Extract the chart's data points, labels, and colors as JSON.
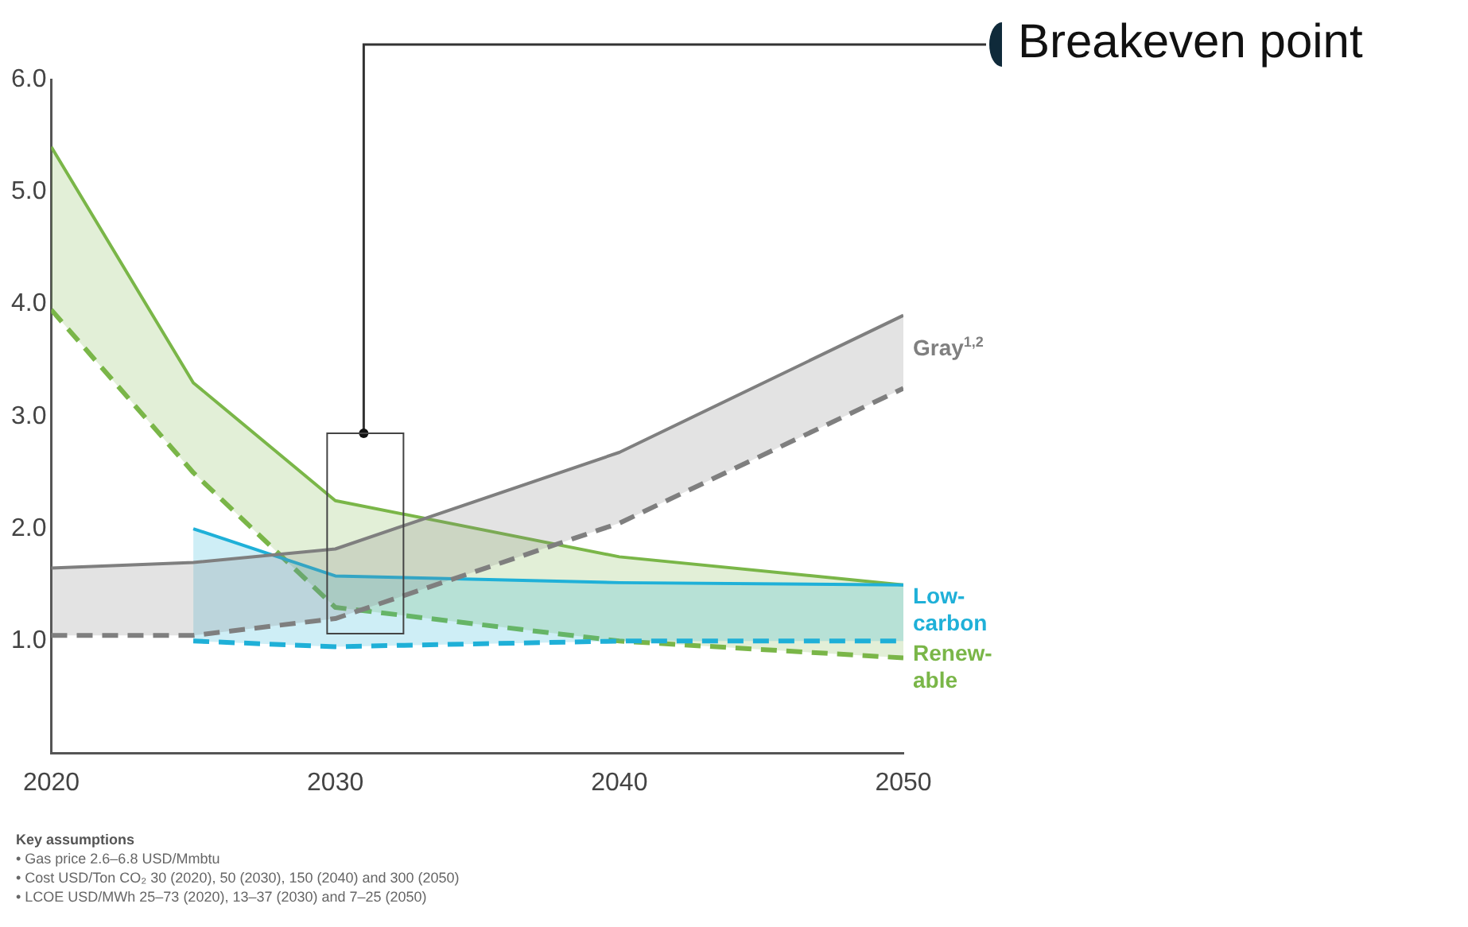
{
  "chart_data": {
    "type": "line",
    "x": [
      2020,
      2025,
      2030,
      2040,
      2050
    ],
    "xlim": [
      2020,
      2050
    ],
    "xticks": [
      2020,
      2030,
      2040,
      2050
    ],
    "ylim": [
      0,
      6
    ],
    "yticks": [
      {
        "value": 1,
        "label": "1.0"
      },
      {
        "value": 2,
        "label": "2.0"
      },
      {
        "value": 3,
        "label": "3.0"
      },
      {
        "value": 4,
        "label": "4.0"
      },
      {
        "value": 5,
        "label": "5.0"
      },
      {
        "value": 6,
        "label": "6.0"
      }
    ],
    "grid": false,
    "legend": false,
    "marker": "none",
    "line_style": "solid",
    "series": [
      {
        "name": "Gray$^{1,2}$",
        "color": "#7f7f7f",
        "values": [
          1.65,
          1.7,
          1.82,
          2.68,
          3.9
        ],
        "lower": [
          1.05,
          1.05,
          1.2,
          2.05,
          3.25
        ],
        "upper": [
          1.65,
          1.7,
          1.82,
          2.68,
          3.9
        ]
      },
      {
        "color": "#7f7f7f",
        "line_style": "dashed",
        "values": [
          1.05,
          1.05,
          1.2,
          2.05,
          3.25
        ]
      },
      {
        "name": "Low-\ncarbon",
        "color": "#1fb0d8",
        "x": [
          2025,
          2030,
          2040,
          2050
        ],
        "values": [
          2.0,
          1.58,
          1.52,
          1.5
        ],
        "lower": [
          1.0,
          0.95,
          1.0,
          1.0
        ],
        "upper": [
          2.0,
          1.58,
          1.52,
          1.5
        ]
      },
      {
        "color": "#1fb0d8",
        "line_style": "dashed",
        "x": [
          2025,
          2030,
          2040,
          2050
        ],
        "values": [
          1.0,
          0.95,
          1.0,
          1.0
        ]
      },
      {
        "name": "Renew-\nable",
        "color": "#7ab648",
        "values": [
          5.4,
          3.3,
          2.25,
          1.75,
          1.5
        ],
        "lower": [
          3.95,
          2.5,
          1.3,
          1.0,
          0.85
        ],
        "upper": [
          5.4,
          3.3,
          2.25,
          1.75,
          1.5
        ]
      },
      {
        "color": "#7ab648",
        "line_style": "dashed",
        "values": [
          3.95,
          2.5,
          1.3,
          1.0,
          0.85
        ]
      }
    ],
    "annotations": [
      {
        "text": "Breakeven point",
        "x": 2031,
        "y": 2.85
      },
      "Key assumptions",
      "• Gas price 2.6–6.8 USD/Mmbtu",
      "• Cost USD/Ton CO₂ 30 (2020), 50 (2030), 150 (2040) and 300 (2050)",
      "• LCOE USD/MWh 25–73 (2020), 13–37 (2030) and 7–25 (2050)"
    ]
  }
}
